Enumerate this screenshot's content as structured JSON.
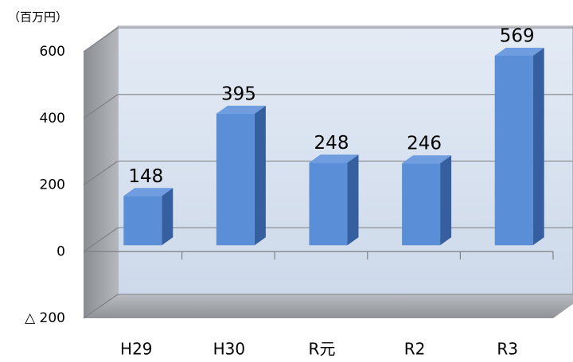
{
  "chart_data": {
    "type": "bar",
    "unit_label": "（百万円）",
    "categories": [
      "H29",
      "H30",
      "R元",
      "R2",
      "R3"
    ],
    "values": [
      148,
      395,
      248,
      246,
      569
    ],
    "color": "#5a8fd8",
    "ylim": [
      -200,
      600
    ],
    "yticks": [
      {
        "value": -200,
        "label": "△ 200"
      },
      0,
      200,
      400,
      600
    ],
    "grid": true
  }
}
